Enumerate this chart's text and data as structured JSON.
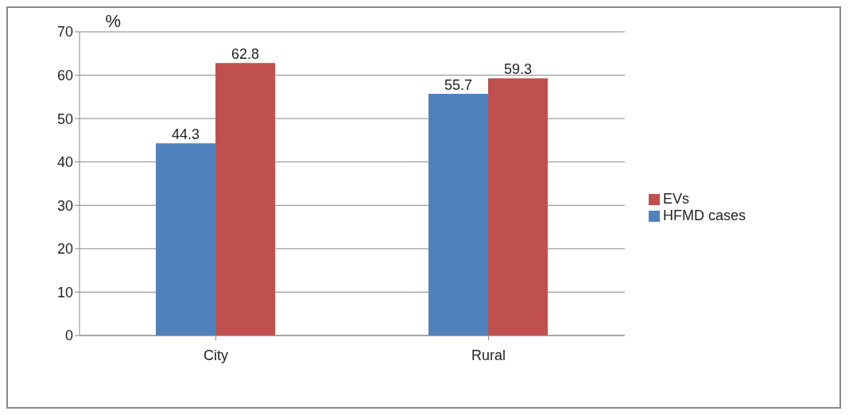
{
  "chart_data": {
    "type": "bar",
    "categories": [
      "City",
      "Rural"
    ],
    "ylabel": "%",
    "series": [
      {
        "name": "HFMD cases",
        "color": "#4f81bd",
        "values": [
          44.3,
          55.7
        ]
      },
      {
        "name": "EVs",
        "color": "#c0504d",
        "values": [
          62.8,
          59.3
        ]
      }
    ],
    "ylim": [
      0,
      70
    ],
    "yticks": [
      0,
      10,
      20,
      30,
      40,
      50,
      60,
      70
    ],
    "grid": "y",
    "legend": "right",
    "data_labels": true
  }
}
